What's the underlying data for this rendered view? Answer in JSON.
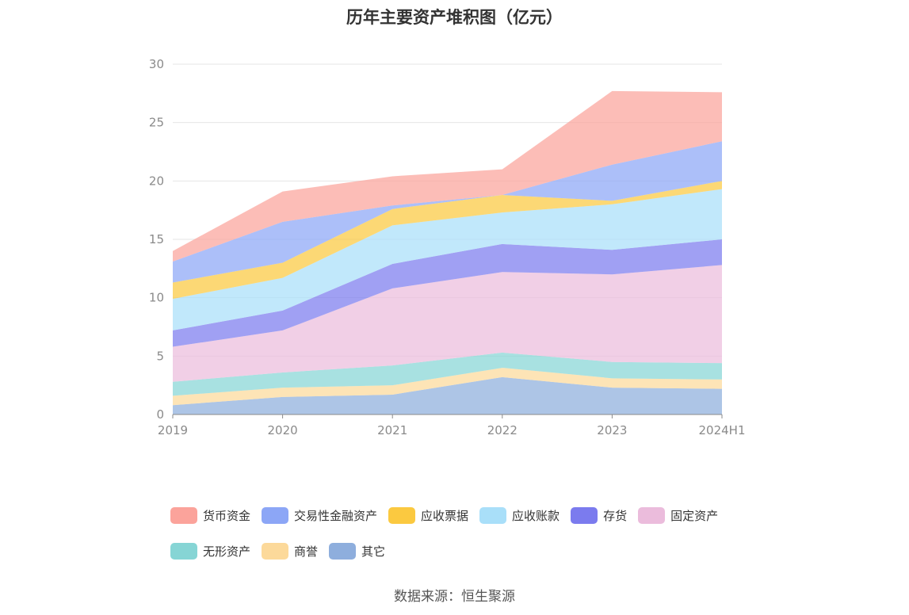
{
  "page": {
    "title": "历年主要资产堆积图（亿元）",
    "source": "数据来源：恒生聚源"
  },
  "chart_data": {
    "type": "area",
    "stacked": true,
    "title": "历年主要资产堆积图（亿元）",
    "xlabel": "",
    "ylabel": "",
    "categories": [
      "2019",
      "2020",
      "2021",
      "2022",
      "2023",
      "2024H1"
    ],
    "ylim": [
      0,
      30
    ],
    "yticks": [
      0,
      5,
      10,
      15,
      20,
      25,
      30
    ],
    "grid": true,
    "legend_position": "bottom",
    "series": [
      {
        "name": "其它",
        "color": "#8eaedd",
        "values": [
          0.8,
          1.5,
          1.7,
          3.2,
          2.3,
          2.2
        ]
      },
      {
        "name": "商誉",
        "color": "#fcd99a",
        "values": [
          0.8,
          0.8,
          0.8,
          0.8,
          0.8,
          0.8
        ]
      },
      {
        "name": "无形资产",
        "color": "#86d5d5",
        "values": [
          1.2,
          1.3,
          1.7,
          1.3,
          1.4,
          1.4
        ]
      },
      {
        "name": "固定资产",
        "color": "#ebbcdc",
        "values": [
          3.0,
          3.6,
          6.6,
          6.9,
          7.5,
          8.4
        ]
      },
      {
        "name": "存货",
        "color": "#7b7bee",
        "values": [
          1.4,
          1.7,
          2.1,
          2.4,
          2.1,
          2.2
        ]
      },
      {
        "name": "应收账款",
        "color": "#a9dff9",
        "values": [
          2.7,
          2.8,
          3.3,
          2.7,
          3.9,
          4.3
        ]
      },
      {
        "name": "应收票据",
        "color": "#fbc940",
        "values": [
          1.4,
          1.3,
          1.4,
          1.5,
          0.3,
          0.7
        ]
      },
      {
        "name": "交易性金融资产",
        "color": "#8ca6f6",
        "values": [
          1.8,
          3.5,
          0.3,
          0.0,
          3.1,
          3.4
        ]
      },
      {
        "name": "货币资金",
        "color": "#fba39b",
        "values": [
          0.9,
          2.6,
          2.5,
          2.2,
          6.3,
          4.2
        ]
      }
    ],
    "legend_order": [
      "货币资金",
      "交易性金融资产",
      "应收票据",
      "应收账款",
      "存货",
      "固定资产",
      "无形资产",
      "商誉",
      "其它"
    ]
  }
}
